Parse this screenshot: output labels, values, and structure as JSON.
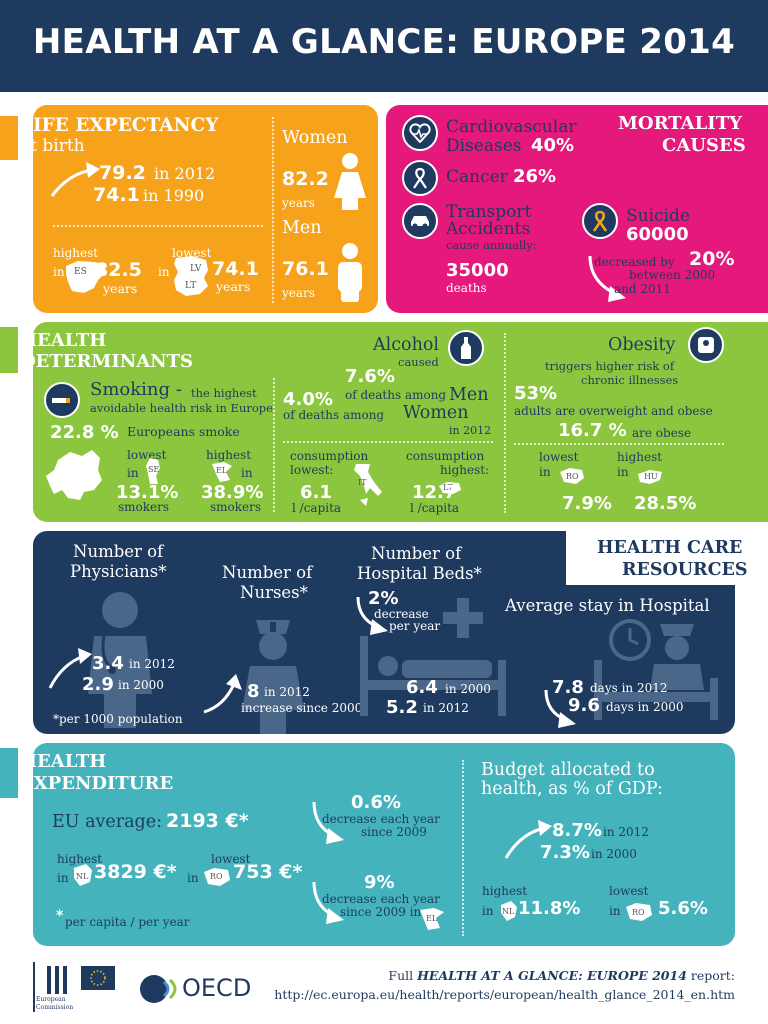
{
  "title": "HEALTH AT A GLANCE: EUROPE 2014",
  "life": {
    "heading": "LIFE EXPECTANCY",
    "subheading": "at birth",
    "v2012": "79.2",
    "y2012": "in 2012",
    "v1990": "74.1",
    "y1990": "in 1990",
    "highest_label": "highest",
    "in1": "in",
    "highest_country": "ES",
    "highest_value": "82.5",
    "years1": "years",
    "lowest_label": "lowest",
    "in2": "in",
    "lowest_country1": "LV",
    "lowest_country2": "LT",
    "lowest_value": "74.1",
    "years2": "years",
    "women_label": "Women",
    "women_value": "82.2",
    "women_years": "years",
    "men_label": "Men",
    "men_value": "76.1",
    "men_years": "years"
  },
  "mortality": {
    "heading1": "MORTALITY",
    "heading2": "CAUSES",
    "cardio1": "Cardiovascular",
    "cardio2": "Diseases",
    "cardio_pct": "40%",
    "cancer": "Cancer",
    "cancer_pct": "26%",
    "transport1": "Transport",
    "transport2": "Accidents",
    "transport_note": "cause annually:",
    "transport_value": "35000",
    "transport_unit": "deaths",
    "suicide": "Suicide",
    "suicide_value": "60000",
    "decrease_label": "decreased by",
    "decrease_pct": "20%",
    "decrease_period1": "between 2000",
    "decrease_period2": "and 2011"
  },
  "determinants": {
    "heading1": "HEALTH",
    "heading2": "DETERMINANTS",
    "smoking": "Smoking -",
    "smoking_note1": "the highest",
    "smoking_note2": "avoidable health risk in Europe",
    "smoke_pct": "22.8 %",
    "smoke_text": "Europeans smoke",
    "lowest": "lowest",
    "in1": "in",
    "lowest_country": "SE",
    "lowest_value": "13.1%",
    "lowest_unit": "smokers",
    "highest": "highest",
    "in2": "in",
    "highest_country": "EL",
    "highest_value": "38.9%",
    "highest_unit": "smokers",
    "alcohol": "Alcohol",
    "alcohol_caused": "caused",
    "alcohol_men_pct": "7.6%",
    "alcohol_men_text": "of deaths among",
    "alcohol_men": "Men",
    "alcohol_women_pct": "4.0%",
    "alcohol_women_text": "of deaths among",
    "alcohol_women": "Women",
    "alcohol_year": "in 2012",
    "consumption1": "consumption",
    "lowest_colon": "lowest:",
    "cons_low_country": "IT",
    "cons_low_value": "6.1",
    "cons_low_unit": "l /capita",
    "consumption2": "consumption",
    "highest_colon": "highest:",
    "cons_high_country": "LT",
    "cons_high_value": "12.7",
    "cons_high_unit": "l /capita",
    "obesity": "Obesity",
    "obesity_note1": "triggers higher risk of",
    "obesity_note2": "chronic illnesses",
    "overweight_pct": "53%",
    "overweight_text": "adults are overweight and obese",
    "obese_pct": "16.7 %",
    "obese_text": "are obese",
    "ob_lowest": "lowest",
    "ob_in1": "in",
    "ob_low_country": "RO",
    "ob_low_value": "7.9%",
    "ob_highest": "highest",
    "ob_in2": "in",
    "ob_high_country": "HU",
    "ob_high_value": "28.5%"
  },
  "care": {
    "heading1": "HEALTH CARE",
    "heading2": "RESOURCES",
    "phys1": "Number of",
    "phys2": "Physicians*",
    "phys_2012": "3.4",
    "phys_2012_label": "in 2012",
    "phys_2000": "2.9",
    "phys_2000_label": "in 2000",
    "footnote": "*per 1000 population",
    "nurses1": "Number of",
    "nurses2": "Nurses*",
    "nurses_value": "8",
    "nurses_label1": "in 2012",
    "nurses_label2": "increase since 2000",
    "beds1": "Number of",
    "beds2": "Hospital Beds*",
    "beds_pct": "2%",
    "beds_decrease1": "decrease",
    "beds_decrease2": "per year",
    "beds_2000": "6.4",
    "beds_2000_label": "in 2000",
    "beds_2012": "5.2",
    "beds_2012_label": "in 2012",
    "stay": "Average stay in Hospital",
    "stay_2012": "7.8",
    "stay_2012_label": "days in 2012",
    "stay_2000": "9.6",
    "stay_2000_label": "days in 2000"
  },
  "expenditure": {
    "heading1": "HEALTH",
    "heading2": "EXPENDITURE",
    "eu_label": "EU average:",
    "eu_value": "2193 €*",
    "highest": "highest",
    "in1": "in",
    "high_country": "NL",
    "high_value": "3829 €*",
    "lowest": "lowest",
    "in2": "in",
    "low_country": "RO",
    "low_value": "753 €*",
    "footnote_star": "*",
    "footnote": "per capita / per year",
    "dec1_pct": "0.6%",
    "dec1_text1": "decrease each year",
    "dec1_text2": "since 2009",
    "dec2_pct": "9%",
    "dec2_text1": "decrease each year",
    "dec2_text2": "since 2009 in",
    "dec2_country": "EL",
    "budget1": "Budget allocated to",
    "budget2": "health, as % of GDP:",
    "gdp_2012": "8.7%",
    "gdp_2012_label": "in 2012",
    "gdp_2000": "7.3%",
    "gdp_2000_label": "in 2000",
    "gdp_highest": "highest",
    "gdp_in1": "in",
    "gdp_high_country": "NL",
    "gdp_high_value": "11.8%",
    "gdp_lowest": "lowest",
    "gdp_in2": "in",
    "gdp_low_country": "RO",
    "gdp_low_value": "5.6%"
  },
  "footer": {
    "line1_prefix": "Full ",
    "line1_title": "HEALTH AT A GLANCE: EUROPE 2014",
    "line1_suffix": " report:",
    "url": "http://ec.europa.eu/health/reports/european/health_glance_2014_en.htm",
    "ec_label1": "European",
    "ec_label2": "Commission",
    "oecd": "OECD"
  },
  "colors": {
    "navy": "#1f3a5f",
    "orange": "#f6a21a",
    "magenta": "#e5187b",
    "green": "#8cc63f",
    "teal": "#45b3bc"
  }
}
